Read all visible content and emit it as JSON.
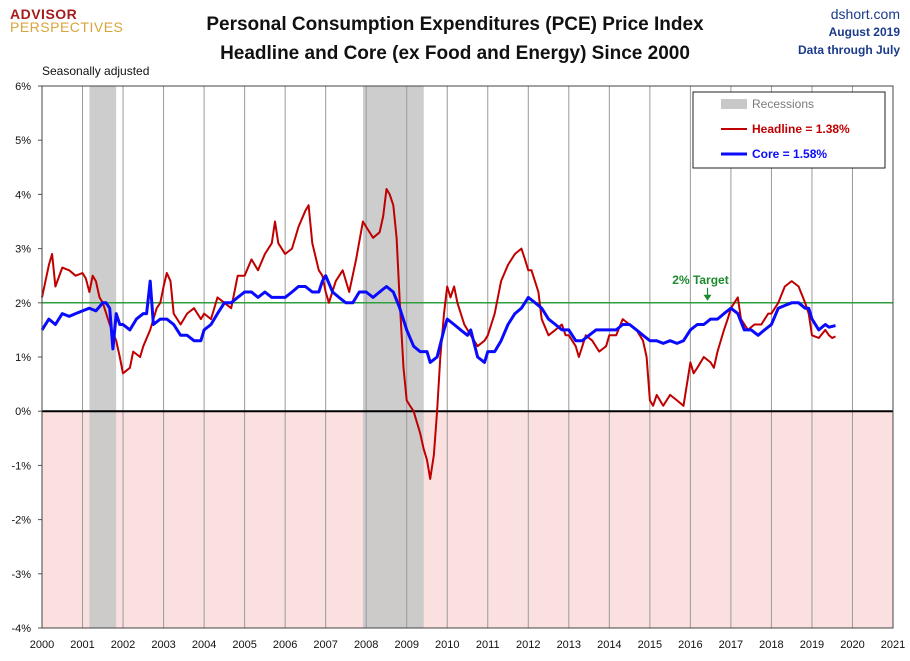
{
  "header": {
    "logo_line1": "ADVISOR",
    "logo_line2": "PERSPECTIVES",
    "title_line1": "Personal Consumption Expenditures (PCE) Price Index",
    "title_line2": "Headline and Core (ex Food and Energy) Since 2000",
    "source": "dshort.com",
    "date": "August 2019",
    "data_through": "Data through July",
    "note": "Seasonally adjusted"
  },
  "colors": {
    "headline": "#c00000",
    "core": "#0a0aff",
    "target": "#2e9e3e",
    "recession": "#c8c8c8",
    "negative_zone": "#fbe0e0"
  },
  "chart_data": {
    "type": "line",
    "title": "Personal Consumption Expenditures (PCE) Price Index Headline and Core (ex Food and Energy) Since 2000",
    "xlim": [
      2000,
      2021
    ],
    "ylim": [
      -4,
      6
    ],
    "x_ticks": [
      "2000",
      "2001",
      "2002",
      "2003",
      "2004",
      "2005",
      "2006",
      "2007",
      "2008",
      "2009",
      "2010",
      "2011",
      "2012",
      "2013",
      "2014",
      "2015",
      "2016",
      "2017",
      "2018",
      "2019",
      "2020",
      "2021"
    ],
    "y_ticks": [
      "6%",
      "5%",
      "4%",
      "3%",
      "2%",
      "1%",
      "0%",
      "-1%",
      "-2%",
      "-3%",
      "-4%"
    ],
    "grid": true,
    "legend_position": "top-right",
    "recessions": [
      [
        2001.17,
        2001.83
      ],
      [
        2007.92,
        2009.42
      ]
    ],
    "recession_label": "Recessions",
    "target": {
      "value": 2.0,
      "label": "2% Target",
      "x": 2016.25
    },
    "series": [
      {
        "name": "Headline = 1.38%",
        "points": [
          [
            2000.0,
            2.1
          ],
          [
            2000.17,
            2.7
          ],
          [
            2000.25,
            2.9
          ],
          [
            2000.33,
            2.3
          ],
          [
            2000.5,
            2.65
          ],
          [
            2000.67,
            2.6
          ],
          [
            2000.83,
            2.5
          ],
          [
            2001.0,
            2.55
          ],
          [
            2001.08,
            2.45
          ],
          [
            2001.17,
            2.2
          ],
          [
            2001.25,
            2.5
          ],
          [
            2001.33,
            2.4
          ],
          [
            2001.42,
            2.1
          ],
          [
            2001.5,
            2.0
          ],
          [
            2001.67,
            1.6
          ],
          [
            2001.83,
            1.3
          ],
          [
            2001.92,
            1.0
          ],
          [
            2002.0,
            0.7
          ],
          [
            2002.17,
            0.8
          ],
          [
            2002.25,
            1.1
          ],
          [
            2002.42,
            1.0
          ],
          [
            2002.5,
            1.2
          ],
          [
            2002.67,
            1.5
          ],
          [
            2002.83,
            1.9
          ],
          [
            2002.92,
            2.0
          ],
          [
            2003.0,
            2.3
          ],
          [
            2003.08,
            2.55
          ],
          [
            2003.17,
            2.4
          ],
          [
            2003.25,
            1.8
          ],
          [
            2003.42,
            1.6
          ],
          [
            2003.58,
            1.8
          ],
          [
            2003.75,
            1.9
          ],
          [
            2003.92,
            1.7
          ],
          [
            2004.0,
            1.8
          ],
          [
            2004.17,
            1.7
          ],
          [
            2004.33,
            2.1
          ],
          [
            2004.5,
            2.0
          ],
          [
            2004.67,
            1.9
          ],
          [
            2004.83,
            2.5
          ],
          [
            2005.0,
            2.5
          ],
          [
            2005.17,
            2.8
          ],
          [
            2005.33,
            2.6
          ],
          [
            2005.5,
            2.9
          ],
          [
            2005.67,
            3.1
          ],
          [
            2005.75,
            3.5
          ],
          [
            2005.83,
            3.1
          ],
          [
            2006.0,
            2.9
          ],
          [
            2006.17,
            3.0
          ],
          [
            2006.33,
            3.4
          ],
          [
            2006.5,
            3.7
          ],
          [
            2006.58,
            3.8
          ],
          [
            2006.67,
            3.1
          ],
          [
            2006.83,
            2.6
          ],
          [
            2006.92,
            2.5
          ],
          [
            2007.0,
            2.2
          ],
          [
            2007.08,
            2.0
          ],
          [
            2007.25,
            2.4
          ],
          [
            2007.42,
            2.6
          ],
          [
            2007.58,
            2.2
          ],
          [
            2007.75,
            2.8
          ],
          [
            2007.92,
            3.5
          ],
          [
            2008.0,
            3.4
          ],
          [
            2008.17,
            3.2
          ],
          [
            2008.33,
            3.3
          ],
          [
            2008.42,
            3.6
          ],
          [
            2008.5,
            4.1
          ],
          [
            2008.58,
            4.0
          ],
          [
            2008.67,
            3.8
          ],
          [
            2008.75,
            3.2
          ],
          [
            2008.83,
            2.0
          ],
          [
            2008.92,
            0.8
          ],
          [
            2009.0,
            0.2
          ],
          [
            2009.08,
            0.1
          ],
          [
            2009.17,
            0.0
          ],
          [
            2009.25,
            -0.2
          ],
          [
            2009.33,
            -0.4
          ],
          [
            2009.42,
            -0.7
          ],
          [
            2009.5,
            -0.9
          ],
          [
            2009.58,
            -1.25
          ],
          [
            2009.67,
            -0.8
          ],
          [
            2009.75,
            0.0
          ],
          [
            2009.83,
            1.0
          ],
          [
            2009.92,
            1.8
          ],
          [
            2010.0,
            2.3
          ],
          [
            2010.08,
            2.1
          ],
          [
            2010.17,
            2.3
          ],
          [
            2010.25,
            2.0
          ],
          [
            2010.42,
            1.6
          ],
          [
            2010.58,
            1.4
          ],
          [
            2010.75,
            1.2
          ],
          [
            2010.92,
            1.3
          ],
          [
            2011.0,
            1.4
          ],
          [
            2011.17,
            1.8
          ],
          [
            2011.33,
            2.4
          ],
          [
            2011.5,
            2.7
          ],
          [
            2011.67,
            2.9
          ],
          [
            2011.83,
            3.0
          ],
          [
            2011.92,
            2.8
          ],
          [
            2012.0,
            2.6
          ],
          [
            2012.08,
            2.6
          ],
          [
            2012.25,
            2.2
          ],
          [
            2012.33,
            1.7
          ],
          [
            2012.5,
            1.4
          ],
          [
            2012.67,
            1.5
          ],
          [
            2012.83,
            1.6
          ],
          [
            2012.92,
            1.4
          ],
          [
            2013.0,
            1.4
          ],
          [
            2013.17,
            1.2
          ],
          [
            2013.25,
            1.0
          ],
          [
            2013.42,
            1.4
          ],
          [
            2013.58,
            1.3
          ],
          [
            2013.75,
            1.1
          ],
          [
            2013.92,
            1.2
          ],
          [
            2014.0,
            1.4
          ],
          [
            2014.17,
            1.4
          ],
          [
            2014.33,
            1.7
          ],
          [
            2014.5,
            1.6
          ],
          [
            2014.67,
            1.5
          ],
          [
            2014.83,
            1.3
          ],
          [
            2014.92,
            1.0
          ],
          [
            2015.0,
            0.2
          ],
          [
            2015.08,
            0.1
          ],
          [
            2015.17,
            0.3
          ],
          [
            2015.33,
            0.1
          ],
          [
            2015.5,
            0.3
          ],
          [
            2015.67,
            0.2
          ],
          [
            2015.83,
            0.1
          ],
          [
            2016.0,
            0.9
          ],
          [
            2016.08,
            0.7
          ],
          [
            2016.17,
            0.8
          ],
          [
            2016.33,
            1.0
          ],
          [
            2016.5,
            0.9
          ],
          [
            2016.58,
            0.8
          ],
          [
            2016.67,
            1.1
          ],
          [
            2016.83,
            1.5
          ],
          [
            2016.92,
            1.7
          ],
          [
            2017.0,
            1.9
          ],
          [
            2017.17,
            2.1
          ],
          [
            2017.25,
            1.7
          ],
          [
            2017.42,
            1.5
          ],
          [
            2017.58,
            1.6
          ],
          [
            2017.75,
            1.6
          ],
          [
            2017.92,
            1.8
          ],
          [
            2018.0,
            1.8
          ],
          [
            2018.17,
            2.0
          ],
          [
            2018.33,
            2.3
          ],
          [
            2018.5,
            2.4
          ],
          [
            2018.67,
            2.3
          ],
          [
            2018.83,
            2.0
          ],
          [
            2018.92,
            1.8
          ],
          [
            2019.0,
            1.4
          ],
          [
            2019.17,
            1.35
          ],
          [
            2019.33,
            1.5
          ],
          [
            2019.42,
            1.4
          ],
          [
            2019.5,
            1.35
          ],
          [
            2019.58,
            1.38
          ]
        ]
      },
      {
        "name": "Core = 1.58%",
        "points": [
          [
            2000.0,
            1.5
          ],
          [
            2000.17,
            1.7
          ],
          [
            2000.33,
            1.6
          ],
          [
            2000.5,
            1.8
          ],
          [
            2000.67,
            1.75
          ],
          [
            2000.83,
            1.8
          ],
          [
            2001.0,
            1.85
          ],
          [
            2001.17,
            1.9
          ],
          [
            2001.33,
            1.85
          ],
          [
            2001.5,
            2.0
          ],
          [
            2001.58,
            2.0
          ],
          [
            2001.67,
            1.9
          ],
          [
            2001.75,
            1.15
          ],
          [
            2001.83,
            1.8
          ],
          [
            2001.92,
            1.6
          ],
          [
            2002.0,
            1.6
          ],
          [
            2002.17,
            1.5
          ],
          [
            2002.33,
            1.7
          ],
          [
            2002.5,
            1.8
          ],
          [
            2002.58,
            1.8
          ],
          [
            2002.67,
            2.4
          ],
          [
            2002.75,
            1.6
          ],
          [
            2002.92,
            1.7
          ],
          [
            2003.08,
            1.7
          ],
          [
            2003.25,
            1.6
          ],
          [
            2003.42,
            1.4
          ],
          [
            2003.58,
            1.4
          ],
          [
            2003.75,
            1.3
          ],
          [
            2003.92,
            1.3
          ],
          [
            2004.0,
            1.5
          ],
          [
            2004.17,
            1.6
          ],
          [
            2004.33,
            1.8
          ],
          [
            2004.5,
            2.0
          ],
          [
            2004.67,
            2.0
          ],
          [
            2004.83,
            2.1
          ],
          [
            2005.0,
            2.2
          ],
          [
            2005.17,
            2.2
          ],
          [
            2005.33,
            2.1
          ],
          [
            2005.5,
            2.2
          ],
          [
            2005.67,
            2.1
          ],
          [
            2005.83,
            2.1
          ],
          [
            2006.0,
            2.1
          ],
          [
            2006.17,
            2.2
          ],
          [
            2006.33,
            2.3
          ],
          [
            2006.5,
            2.3
          ],
          [
            2006.67,
            2.2
          ],
          [
            2006.83,
            2.2
          ],
          [
            2006.92,
            2.4
          ],
          [
            2007.0,
            2.5
          ],
          [
            2007.17,
            2.2
          ],
          [
            2007.33,
            2.1
          ],
          [
            2007.5,
            2.0
          ],
          [
            2007.67,
            2.0
          ],
          [
            2007.83,
            2.2
          ],
          [
            2008.0,
            2.2
          ],
          [
            2008.17,
            2.1
          ],
          [
            2008.33,
            2.2
          ],
          [
            2008.5,
            2.3
          ],
          [
            2008.67,
            2.2
          ],
          [
            2008.83,
            1.9
          ],
          [
            2009.0,
            1.5
          ],
          [
            2009.17,
            1.2
          ],
          [
            2009.33,
            1.1
          ],
          [
            2009.5,
            1.1
          ],
          [
            2009.58,
            0.9
          ],
          [
            2009.75,
            1.0
          ],
          [
            2009.92,
            1.5
          ],
          [
            2010.0,
            1.7
          ],
          [
            2010.17,
            1.6
          ],
          [
            2010.33,
            1.5
          ],
          [
            2010.5,
            1.4
          ],
          [
            2010.58,
            1.5
          ],
          [
            2010.75,
            1.0
          ],
          [
            2010.92,
            0.9
          ],
          [
            2011.0,
            1.1
          ],
          [
            2011.17,
            1.1
          ],
          [
            2011.33,
            1.3
          ],
          [
            2011.5,
            1.6
          ],
          [
            2011.67,
            1.8
          ],
          [
            2011.83,
            1.9
          ],
          [
            2012.0,
            2.1
          ],
          [
            2012.17,
            2.0
          ],
          [
            2012.33,
            1.9
          ],
          [
            2012.5,
            1.7
          ],
          [
            2012.67,
            1.6
          ],
          [
            2012.83,
            1.5
          ],
          [
            2013.0,
            1.5
          ],
          [
            2013.17,
            1.3
          ],
          [
            2013.33,
            1.3
          ],
          [
            2013.5,
            1.4
          ],
          [
            2013.67,
            1.5
          ],
          [
            2013.83,
            1.5
          ],
          [
            2014.0,
            1.5
          ],
          [
            2014.17,
            1.5
          ],
          [
            2014.33,
            1.6
          ],
          [
            2014.5,
            1.6
          ],
          [
            2014.67,
            1.5
          ],
          [
            2014.83,
            1.4
          ],
          [
            2015.0,
            1.3
          ],
          [
            2015.17,
            1.3
          ],
          [
            2015.33,
            1.25
          ],
          [
            2015.5,
            1.3
          ],
          [
            2015.67,
            1.25
          ],
          [
            2015.83,
            1.3
          ],
          [
            2016.0,
            1.5
          ],
          [
            2016.17,
            1.6
          ],
          [
            2016.33,
            1.6
          ],
          [
            2016.5,
            1.7
          ],
          [
            2016.67,
            1.7
          ],
          [
            2016.83,
            1.8
          ],
          [
            2017.0,
            1.9
          ],
          [
            2017.17,
            1.8
          ],
          [
            2017.33,
            1.5
          ],
          [
            2017.5,
            1.5
          ],
          [
            2017.67,
            1.4
          ],
          [
            2017.83,
            1.5
          ],
          [
            2018.0,
            1.6
          ],
          [
            2018.17,
            1.9
          ],
          [
            2018.33,
            1.95
          ],
          [
            2018.5,
            2.0
          ],
          [
            2018.67,
            2.0
          ],
          [
            2018.83,
            1.9
          ],
          [
            2018.92,
            1.9
          ],
          [
            2019.0,
            1.7
          ],
          [
            2019.17,
            1.5
          ],
          [
            2019.33,
            1.6
          ],
          [
            2019.42,
            1.55
          ],
          [
            2019.58,
            1.58
          ]
        ]
      }
    ]
  }
}
